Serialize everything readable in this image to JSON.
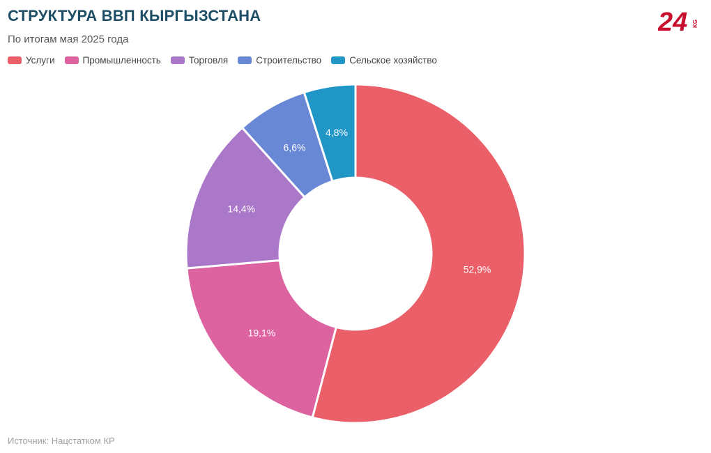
{
  "header": {
    "title": "СТРУКТУРА ВВП КЫРГЫЗСТАНА",
    "subtitle": "По итогам мая 2025 года"
  },
  "logo": {
    "icon": "24kg-logo-icon",
    "color": "#c8102e",
    "text_main": "24",
    "text_sub": "KG"
  },
  "footer": {
    "source": "Источник: Нацстатком КР"
  },
  "chart_data": {
    "type": "pie",
    "donut": true,
    "title": "СТРУКТУРА ВВП КЫРГЫЗСТАНА",
    "subtitle": "По итогам мая 2025 года",
    "legend_position": "top-left",
    "categories": [
      "Услуги",
      "Промышленность",
      "Торговля",
      "Строительство",
      "Сельское хозяйство"
    ],
    "values": [
      52.9,
      19.1,
      14.4,
      6.6,
      4.8
    ],
    "labels": [
      "52,9%",
      "19,1%",
      "14,4%",
      "6,6%",
      "4,8%"
    ],
    "colors": [
      "#eb5f69",
      "#dd62a0",
      "#ab77c8",
      "#6887d5",
      "#1f96c6"
    ]
  }
}
